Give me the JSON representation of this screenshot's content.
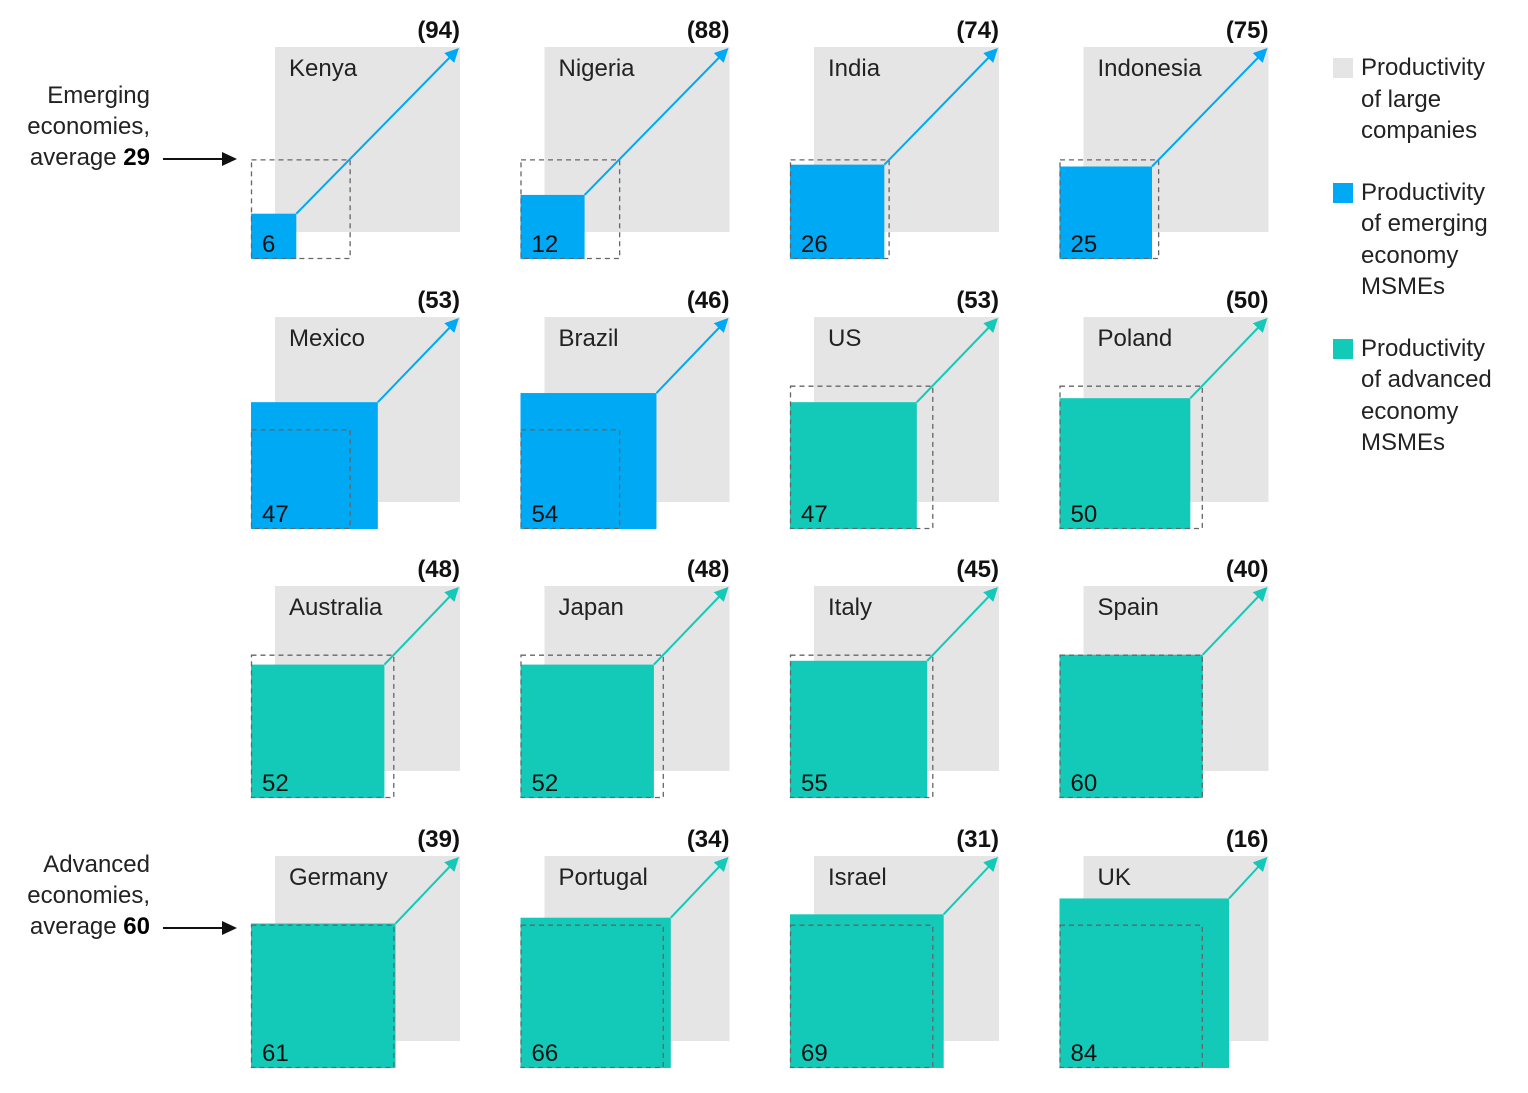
{
  "chart_data": {
    "type": "bar",
    "scale_max": 100,
    "series": [
      {
        "name": "Productivity of large companies",
        "values": [
          100,
          100,
          100,
          100,
          100,
          100,
          100,
          100,
          100,
          100,
          100,
          100,
          100,
          100,
          100,
          100
        ]
      },
      {
        "name": "Productivity of MSMEs",
        "values": [
          6,
          12,
          26,
          25,
          47,
          54,
          47,
          50,
          52,
          52,
          55,
          60,
          61,
          66,
          69,
          84
        ]
      }
    ],
    "countries": [
      {
        "name": "Kenya",
        "value": 6,
        "gap": "(94)",
        "group": "emerging"
      },
      {
        "name": "Nigeria",
        "value": 12,
        "gap": "(88)",
        "group": "emerging"
      },
      {
        "name": "India",
        "value": 26,
        "gap": "(74)",
        "group": "emerging"
      },
      {
        "name": "Indonesia",
        "value": 25,
        "gap": "(75)",
        "group": "emerging"
      },
      {
        "name": "Mexico",
        "value": 47,
        "gap": "(53)",
        "group": "emerging"
      },
      {
        "name": "Brazil",
        "value": 54,
        "gap": "(46)",
        "group": "emerging"
      },
      {
        "name": "US",
        "value": 47,
        "gap": "(53)",
        "group": "advanced"
      },
      {
        "name": "Poland",
        "value": 50,
        "gap": "(50)",
        "group": "advanced"
      },
      {
        "name": "Australia",
        "value": 52,
        "gap": "(48)",
        "group": "advanced"
      },
      {
        "name": "Japan",
        "value": 52,
        "gap": "(48)",
        "group": "advanced"
      },
      {
        "name": "Italy",
        "value": 55,
        "gap": "(45)",
        "group": "advanced"
      },
      {
        "name": "Spain",
        "value": 60,
        "gap": "(40)",
        "group": "advanced"
      },
      {
        "name": "Germany",
        "value": 61,
        "gap": "(39)",
        "group": "advanced"
      },
      {
        "name": "Portugal",
        "value": 66,
        "gap": "(34)",
        "group": "advanced"
      },
      {
        "name": "Israel",
        "value": 69,
        "gap": "(31)",
        "group": "advanced"
      },
      {
        "name": "UK",
        "value": 84,
        "gap": "(16)",
        "group": "advanced"
      }
    ],
    "averages": {
      "emerging": 29,
      "advanced": 60
    }
  },
  "annotations": {
    "emerging": {
      "line1": "Emerging",
      "line2": "economies,",
      "prefix": "average ",
      "value": "29"
    },
    "advanced": {
      "line1": "Advanced",
      "line2": "economies,",
      "prefix": "average ",
      "value": "60"
    }
  },
  "legend": [
    {
      "lines": [
        "Productivity",
        "of large",
        "companies"
      ],
      "color": "#e5e5e5"
    },
    {
      "lines": [
        "Productivity",
        "of emerging",
        "economy",
        "MSMEs"
      ],
      "color": "#00a9f4"
    },
    {
      "lines": [
        "Productivity",
        "of advanced",
        "economy",
        "MSMEs"
      ],
      "color": "#13c9b8"
    }
  ],
  "colors": {
    "large": "#e5e5e5",
    "emerging": "#00a9f4",
    "advanced": "#13c9b8",
    "dashed": "#666666"
  }
}
